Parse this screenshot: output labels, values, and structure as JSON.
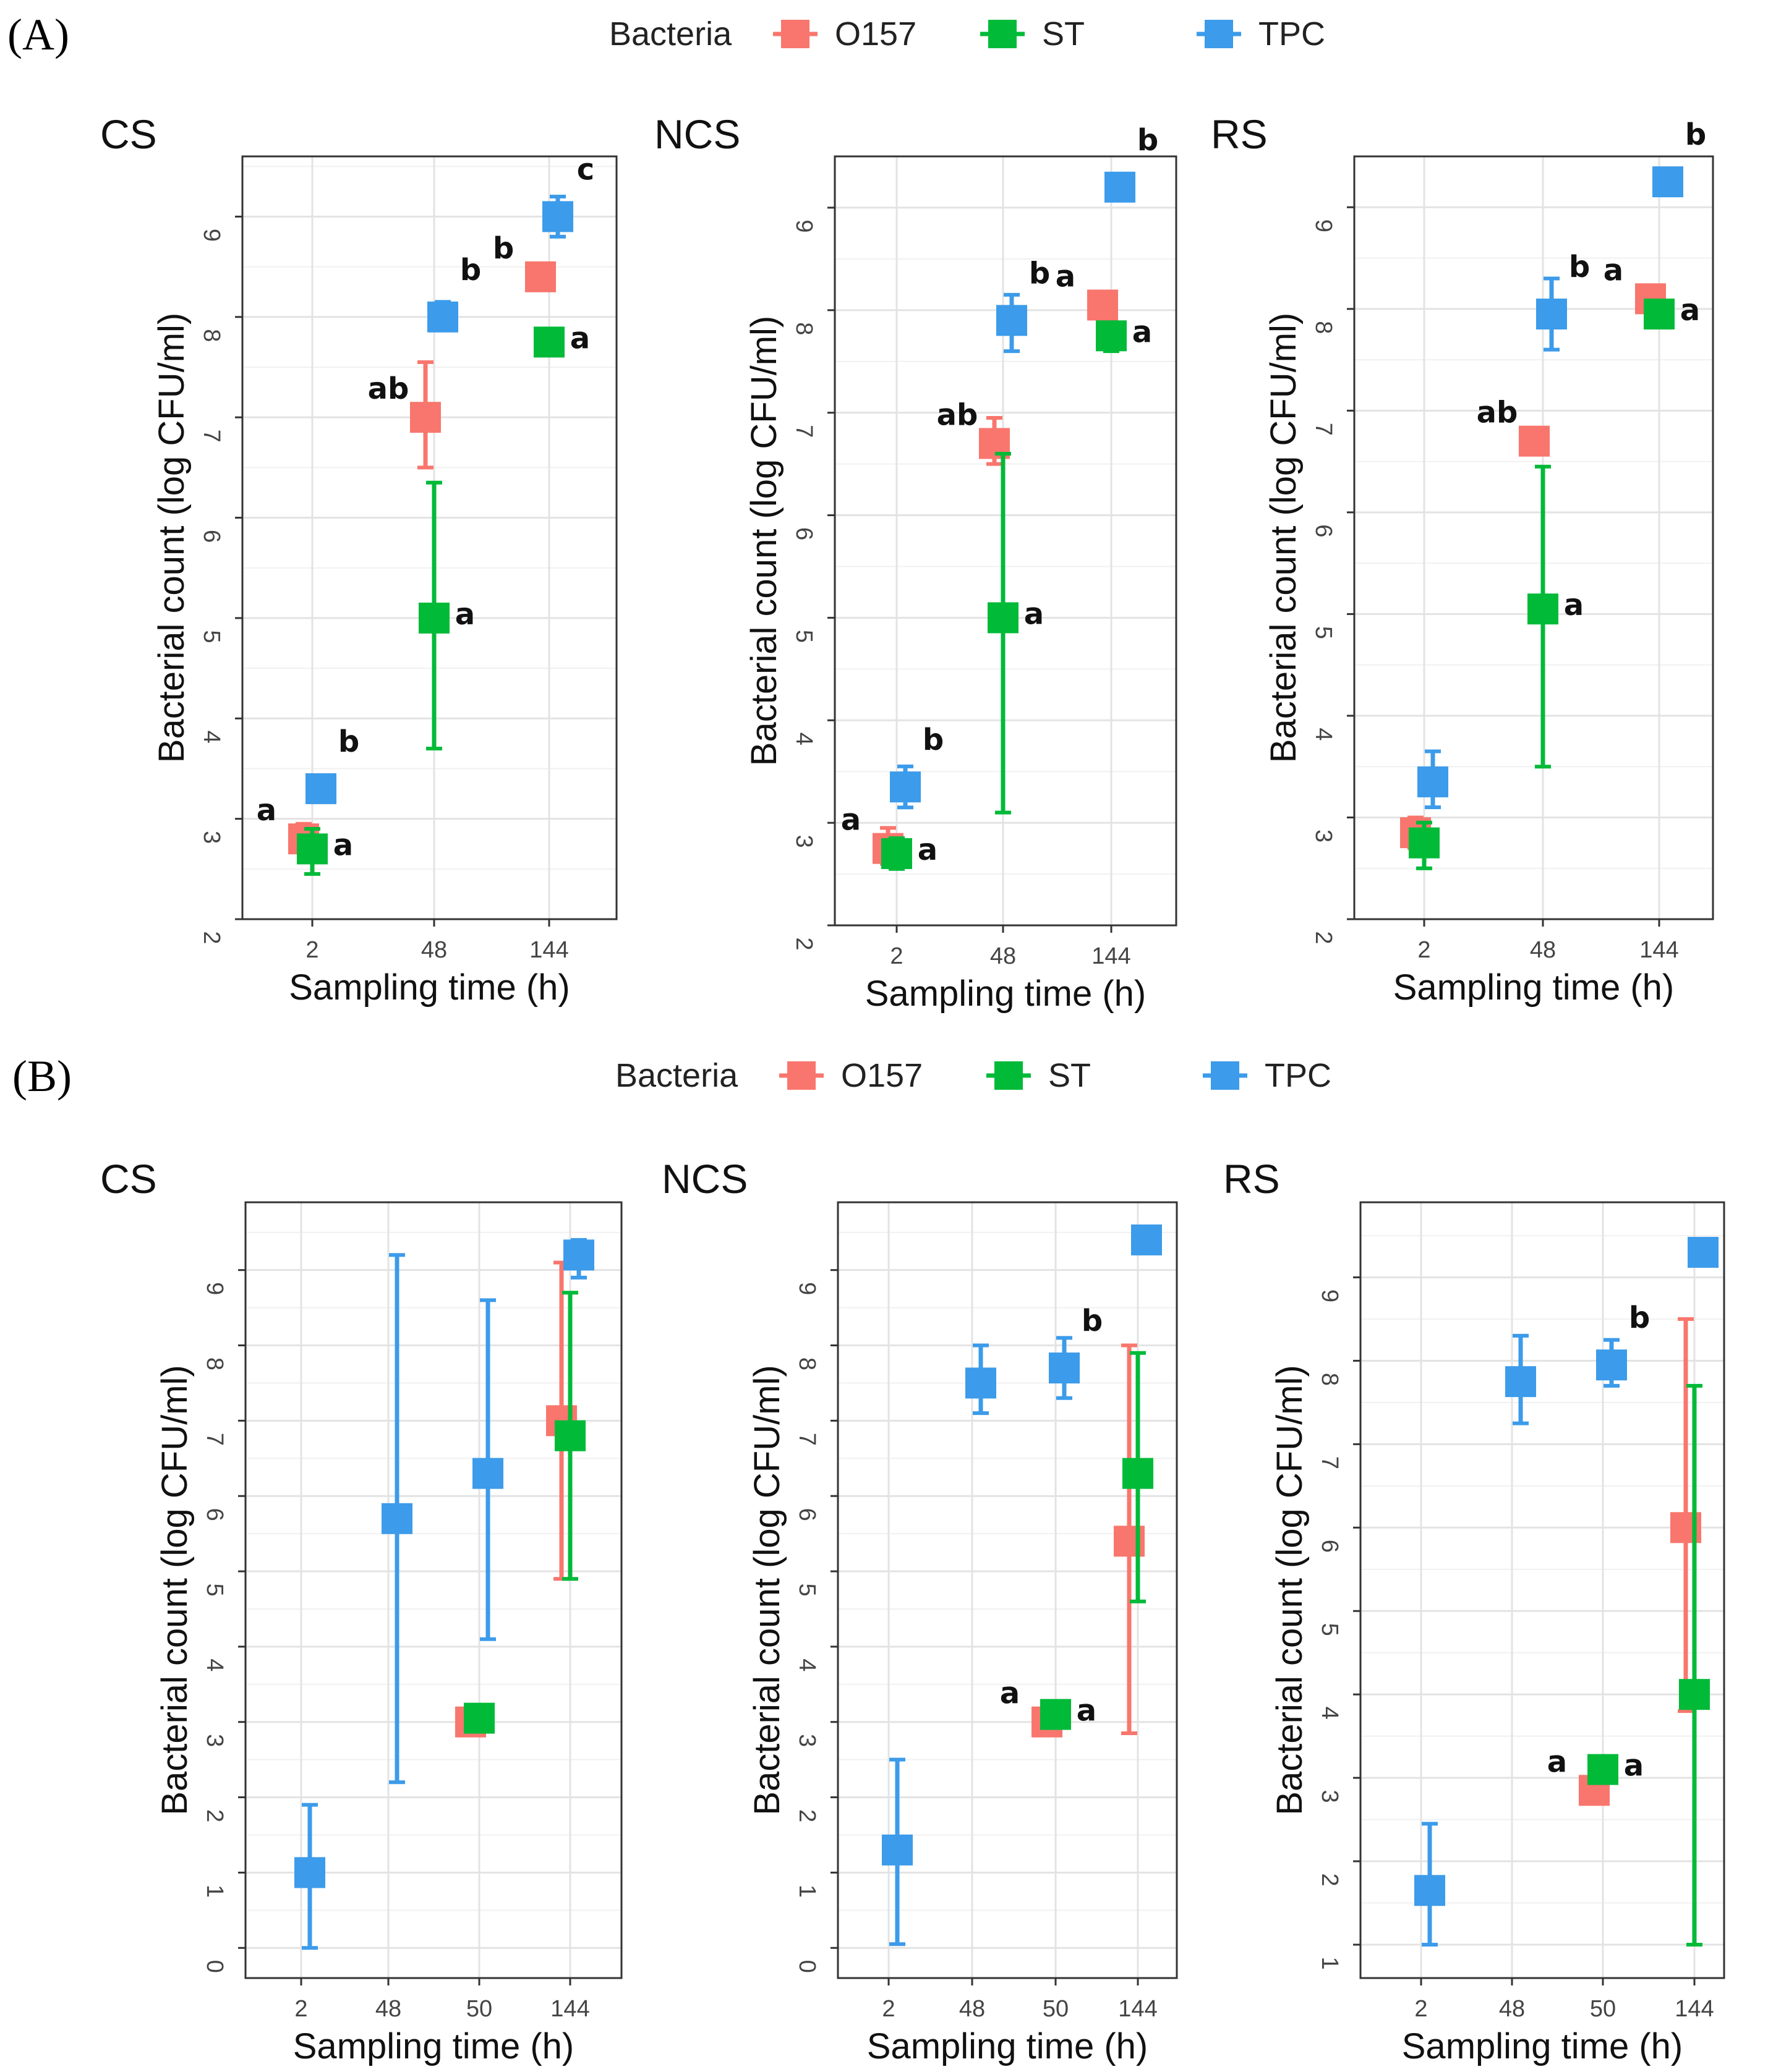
{
  "colors": {
    "O157": "#F8766D",
    "ST": "#00BA38",
    "TPC": "#3C9BEA"
  },
  "sections": [
    {
      "label": "(A)",
      "legend": {
        "title": "Bacteria",
        "entries": [
          "O157",
          "ST",
          "TPC"
        ]
      }
    },
    {
      "label": "(B)",
      "legend": {
        "title": "Bacteria",
        "entries": [
          "O157",
          "ST",
          "TPC"
        ]
      }
    }
  ],
  "chart_data": [
    {
      "type": "scatter",
      "section": "A",
      "title": "CS",
      "xlabel": "Sampling time (h)",
      "ylabel": "Bacterial count (log CFU/ml)",
      "categories": [
        "2",
        "48",
        "144"
      ],
      "ylim": [
        2,
        9.6
      ],
      "yticks": [
        2,
        3,
        4,
        5,
        6,
        7,
        8,
        9
      ],
      "series": [
        {
          "name": "O157",
          "values": [
            2.8,
            7.0,
            8.4
          ],
          "low": [
            2.7,
            6.5,
            8.3
          ],
          "high": [
            2.95,
            7.55,
            8.5
          ],
          "labels": [
            "a",
            "ab",
            "b"
          ]
        },
        {
          "name": "ST",
          "values": [
            2.7,
            5.0,
            7.75
          ],
          "low": [
            2.45,
            3.7,
            7.65
          ],
          "high": [
            2.9,
            6.35,
            7.85
          ],
          "labels": [
            "a",
            "a",
            "a"
          ]
        },
        {
          "name": "TPC",
          "values": [
            3.3,
            8.0,
            9.0
          ],
          "low": [
            3.2,
            7.9,
            8.8
          ],
          "high": [
            3.4,
            8.15,
            9.2
          ],
          "labels": [
            "b",
            "b",
            "c"
          ]
        }
      ]
    },
    {
      "type": "scatter",
      "section": "A",
      "title": "NCS",
      "xlabel": "Sampling time (h)",
      "ylabel": "Bacterial count (log CFU/ml)",
      "categories": [
        "2",
        "48",
        "144"
      ],
      "ylim": [
        2,
        9.5
      ],
      "yticks": [
        2,
        3,
        4,
        5,
        6,
        7,
        8,
        9
      ],
      "series": [
        {
          "name": "O157",
          "values": [
            2.75,
            6.7,
            8.05
          ],
          "low": [
            2.6,
            6.5,
            7.95
          ],
          "high": [
            2.95,
            6.95,
            8.15
          ],
          "labels": [
            "a",
            "ab",
            "a"
          ]
        },
        {
          "name": "ST",
          "values": [
            2.7,
            5.0,
            7.75
          ],
          "low": [
            2.55,
            3.1,
            7.6
          ],
          "high": [
            2.85,
            6.6,
            7.85
          ],
          "labels": [
            "a",
            "a",
            "a"
          ]
        },
        {
          "name": "TPC",
          "values": [
            3.35,
            7.9,
            9.2
          ],
          "low": [
            3.15,
            7.6,
            9.15
          ],
          "high": [
            3.55,
            8.15,
            9.3
          ],
          "labels": [
            "b",
            "b",
            "b"
          ]
        }
      ]
    },
    {
      "type": "scatter",
      "section": "A",
      "title": "RS",
      "xlabel": "Sampling time (h)",
      "ylabel": "Bacterial count (log CFU/ml)",
      "categories": [
        "2",
        "48",
        "144"
      ],
      "ylim": [
        2,
        9.5
      ],
      "yticks": [
        2,
        3,
        4,
        5,
        6,
        7,
        8,
        9
      ],
      "series": [
        {
          "name": "O157",
          "values": [
            2.85,
            6.7,
            8.1
          ],
          "low": [
            2.7,
            6.6,
            8.0
          ],
          "high": [
            3.0,
            6.8,
            8.2
          ],
          "labels": [
            "",
            "ab",
            "a"
          ]
        },
        {
          "name": "ST",
          "values": [
            2.75,
            5.05,
            7.95
          ],
          "low": [
            2.5,
            3.5,
            7.85
          ],
          "high": [
            2.95,
            6.45,
            8.05
          ],
          "labels": [
            "",
            "a",
            "a"
          ]
        },
        {
          "name": "TPC",
          "values": [
            3.35,
            7.95,
            9.25
          ],
          "low": [
            3.1,
            7.6,
            9.15
          ],
          "high": [
            3.65,
            8.3,
            9.35
          ],
          "labels": [
            "",
            "b",
            "b"
          ]
        }
      ]
    },
    {
      "type": "scatter",
      "section": "B",
      "title": "CS",
      "xlabel": "Sampling time (h)",
      "ylabel": "Bacterial count (log CFU/ml)",
      "categories": [
        "2",
        "48",
        "50",
        "144"
      ],
      "ylim": [
        -0.4,
        9.9
      ],
      "yticks": [
        0,
        1,
        2,
        3,
        4,
        5,
        6,
        7,
        8,
        9
      ],
      "series": [
        {
          "name": "O157",
          "values": [
            null,
            null,
            3.0,
            7.0
          ],
          "low": [
            null,
            null,
            2.95,
            4.9
          ],
          "high": [
            null,
            null,
            3.05,
            9.1
          ],
          "labels": [
            "",
            "",
            "",
            ""
          ]
        },
        {
          "name": "ST",
          "values": [
            null,
            null,
            3.05,
            6.8
          ],
          "low": [
            null,
            null,
            3.0,
            4.9
          ],
          "high": [
            null,
            null,
            3.1,
            8.7
          ],
          "labels": [
            "",
            "",
            "",
            ""
          ]
        },
        {
          "name": "TPC",
          "values": [
            1.0,
            5.7,
            6.3,
            9.2
          ],
          "low": [
            0.0,
            2.2,
            4.1,
            8.9
          ],
          "high": [
            1.9,
            9.2,
            8.6,
            9.4
          ],
          "labels": [
            "",
            "",
            "",
            ""
          ]
        }
      ]
    },
    {
      "type": "scatter",
      "section": "B",
      "title": "NCS",
      "xlabel": "Sampling time (h)",
      "ylabel": "Bacterial count (log CFU/ml)",
      "categories": [
        "2",
        "48",
        "50",
        "144"
      ],
      "ylim": [
        -0.4,
        9.9
      ],
      "yticks": [
        0,
        1,
        2,
        3,
        4,
        5,
        6,
        7,
        8,
        9
      ],
      "series": [
        {
          "name": "O157",
          "values": [
            null,
            null,
            3.0,
            5.4
          ],
          "low": [
            null,
            null,
            2.95,
            2.85
          ],
          "high": [
            null,
            null,
            3.05,
            8.0
          ],
          "labels": [
            "",
            "",
            "a",
            ""
          ]
        },
        {
          "name": "ST",
          "values": [
            null,
            null,
            3.1,
            6.3
          ],
          "low": [
            null,
            null,
            3.05,
            4.6
          ],
          "high": [
            null,
            null,
            3.15,
            7.9
          ],
          "labels": [
            "",
            "",
            "a",
            ""
          ]
        },
        {
          "name": "TPC",
          "values": [
            1.3,
            7.5,
            7.7,
            9.4
          ],
          "low": [
            0.05,
            7.1,
            7.3,
            9.35
          ],
          "high": [
            2.5,
            8.0,
            8.1,
            9.45
          ],
          "labels": [
            "",
            "",
            "b",
            ""
          ]
        }
      ]
    },
    {
      "type": "scatter",
      "section": "B",
      "title": "RS",
      "xlabel": "Sampling time (h)",
      "ylabel": "Bacterial count (log CFU/ml)",
      "categories": [
        "2",
        "48",
        "50",
        "144"
      ],
      "ylim": [
        0.6,
        9.9
      ],
      "yticks": [
        1,
        2,
        3,
        4,
        5,
        6,
        7,
        8,
        9
      ],
      "series": [
        {
          "name": "O157",
          "values": [
            null,
            null,
            2.85,
            6.0
          ],
          "low": [
            null,
            null,
            2.7,
            3.8
          ],
          "high": [
            null,
            null,
            3.0,
            8.5
          ],
          "labels": [
            "",
            "",
            "a",
            ""
          ]
        },
        {
          "name": "ST",
          "values": [
            null,
            null,
            3.1,
            4.0
          ],
          "low": [
            null,
            null,
            3.05,
            1.0
          ],
          "high": [
            null,
            null,
            3.15,
            7.7
          ],
          "labels": [
            "",
            "",
            "a",
            ""
          ]
        },
        {
          "name": "TPC",
          "values": [
            1.65,
            7.75,
            7.95,
            9.3
          ],
          "low": [
            1.0,
            7.25,
            7.7,
            9.25
          ],
          "high": [
            2.45,
            8.3,
            8.25,
            9.35
          ],
          "labels": [
            "",
            "",
            "b",
            ""
          ]
        }
      ]
    }
  ]
}
